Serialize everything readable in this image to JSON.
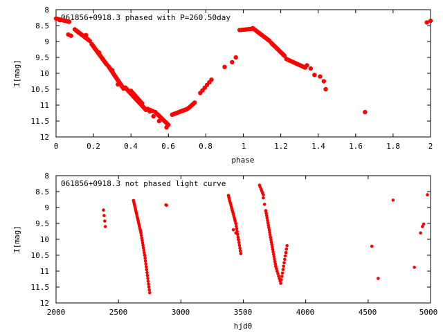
{
  "chart_data": [
    {
      "type": "scatter",
      "title": "061856+0918.3 phased with P=260.50day",
      "xlabel": "phase",
      "ylabel": "I[mag]",
      "xlim": [
        0,
        2
      ],
      "ylim": [
        8,
        12
      ],
      "y_inverted": true,
      "xticks": [
        "0",
        "0.2",
        "0.4",
        "0.6",
        "0.8",
        "1",
        "1.2",
        "1.4",
        "1.6",
        "1.8",
        "2"
      ],
      "yticks": [
        "8",
        "8.5",
        "9",
        "9.5",
        "10",
        "10.5",
        "11",
        "11.5",
        "12"
      ],
      "marker_color": "#ff0000",
      "grid": false,
      "segments": [
        {
          "from": [
            0.0,
            8.28
          ],
          "to": [
            0.07,
            8.38
          ],
          "n": 9
        },
        {
          "from": [
            0.065,
            8.78
          ],
          "to": [
            0.08,
            8.82
          ],
          "n": 2
        },
        {
          "from": [
            0.1,
            8.62
          ],
          "to": [
            0.18,
            8.98
          ],
          "n": 14
        },
        {
          "from": [
            0.19,
            9.08
          ],
          "to": [
            0.27,
            9.72
          ],
          "n": 22
        },
        {
          "from": [
            0.28,
            9.78
          ],
          "to": [
            0.36,
            10.48
          ],
          "n": 22
        },
        {
          "from": [
            0.37,
            10.45
          ],
          "to": [
            0.48,
            11.15
          ],
          "n": 24
        },
        {
          "from": [
            0.4,
            10.55
          ],
          "to": [
            0.46,
            10.95
          ],
          "n": 9
        },
        {
          "from": [
            0.49,
            11.12
          ],
          "to": [
            0.53,
            11.22
          ],
          "n": 4
        },
        {
          "from": [
            0.54,
            11.28
          ],
          "to": [
            0.6,
            11.62
          ],
          "n": 10
        },
        {
          "from": [
            0.62,
            11.3
          ],
          "to": [
            0.7,
            11.12
          ],
          "n": 14
        },
        {
          "from": [
            0.71,
            11.08
          ],
          "to": [
            0.74,
            10.92
          ],
          "n": 5
        },
        {
          "from": [
            0.77,
            10.62
          ],
          "to": [
            0.83,
            10.2
          ],
          "n": 6
        },
        {
          "from": [
            0.98,
            8.64
          ],
          "to": [
            1.05,
            8.6
          ],
          "n": 8
        },
        {
          "from": [
            1.05,
            8.58
          ],
          "to": [
            1.14,
            8.98
          ],
          "n": 14
        },
        {
          "from": [
            1.15,
            9.05
          ],
          "to": [
            1.22,
            9.45
          ],
          "n": 13
        },
        {
          "from": [
            1.23,
            9.55
          ],
          "to": [
            1.33,
            9.82
          ],
          "n": 16
        }
      ],
      "points": [
        {
          "x": 0.02,
          "y": 8.33
        },
        {
          "x": 0.12,
          "y": 8.72
        },
        {
          "x": 0.16,
          "y": 8.8
        },
        {
          "x": 0.23,
          "y": 9.35
        },
        {
          "x": 0.3,
          "y": 9.9
        },
        {
          "x": 0.33,
          "y": 10.35
        },
        {
          "x": 0.5,
          "y": 11.2
        },
        {
          "x": 0.52,
          "y": 11.35
        },
        {
          "x": 0.55,
          "y": 11.5
        },
        {
          "x": 0.59,
          "y": 11.7
        },
        {
          "x": 0.9,
          "y": 9.8
        },
        {
          "x": 0.94,
          "y": 9.65
        },
        {
          "x": 0.96,
          "y": 9.5
        },
        {
          "x": 1.34,
          "y": 9.75
        },
        {
          "x": 1.36,
          "y": 9.85
        },
        {
          "x": 1.38,
          "y": 10.05
        },
        {
          "x": 1.41,
          "y": 10.1
        },
        {
          "x": 1.43,
          "y": 10.25
        },
        {
          "x": 1.44,
          "y": 10.5
        },
        {
          "x": 1.65,
          "y": 11.22
        },
        {
          "x": 1.98,
          "y": 8.4
        },
        {
          "x": 2.0,
          "y": 8.35
        }
      ]
    },
    {
      "type": "scatter",
      "title": "061856+0918.3 not phased light curve",
      "xlabel": "hjd0",
      "ylabel": "I[mag]",
      "xlim": [
        2000,
        5000
      ],
      "ylim": [
        8,
        12
      ],
      "y_inverted": true,
      "xticks": [
        "2000",
        "2500",
        "3000",
        "3500",
        "4000",
        "4500",
        "5000"
      ],
      "yticks": [
        "8",
        "8.5",
        "9",
        "9.5",
        "10",
        "10.5",
        "11",
        "11.5",
        "12"
      ],
      "marker_color": "#ff0000",
      "grid": false,
      "segments": [
        {
          "from": [
            2380,
            9.08
          ],
          "to": [
            2395,
            9.6
          ],
          "n": 4
        },
        {
          "from": [
            2620,
            8.78
          ],
          "to": [
            2680,
            9.8
          ],
          "n": 20
        },
        {
          "from": [
            2680,
            9.8
          ],
          "to": [
            2710,
            10.5
          ],
          "n": 10
        },
        {
          "from": [
            2710,
            10.5
          ],
          "to": [
            2750,
            11.68
          ],
          "n": 14
        },
        {
          "from": [
            3380,
            8.62
          ],
          "to": [
            3440,
            9.5
          ],
          "n": 16
        },
        {
          "from": [
            3440,
            9.5
          ],
          "to": [
            3480,
            10.45
          ],
          "n": 12
        },
        {
          "from": [
            3630,
            8.3
          ],
          "to": [
            3660,
            8.6
          ],
          "n": 6
        },
        {
          "from": [
            3680,
            9.1
          ],
          "to": [
            3760,
            10.85
          ],
          "n": 24
        },
        {
          "from": [
            3760,
            10.85
          ],
          "to": [
            3800,
            11.38
          ],
          "n": 8
        },
        {
          "from": [
            3800,
            11.38
          ],
          "to": [
            3850,
            10.2
          ],
          "n": 12
        }
      ],
      "points": [
        {
          "x": 2880,
          "y": 8.92
        },
        {
          "x": 2885,
          "y": 8.93
        },
        {
          "x": 3420,
          "y": 9.7
        },
        {
          "x": 3440,
          "y": 9.8
        },
        {
          "x": 3460,
          "y": 10.0
        },
        {
          "x": 3660,
          "y": 8.7
        },
        {
          "x": 3670,
          "y": 8.9
        },
        {
          "x": 4530,
          "y": 10.22
        },
        {
          "x": 4580,
          "y": 11.23
        },
        {
          "x": 4700,
          "y": 8.77
        },
        {
          "x": 4870,
          "y": 10.88
        },
        {
          "x": 4920,
          "y": 9.8
        },
        {
          "x": 4935,
          "y": 9.6
        },
        {
          "x": 4945,
          "y": 9.52
        },
        {
          "x": 4975,
          "y": 8.6
        }
      ]
    }
  ]
}
